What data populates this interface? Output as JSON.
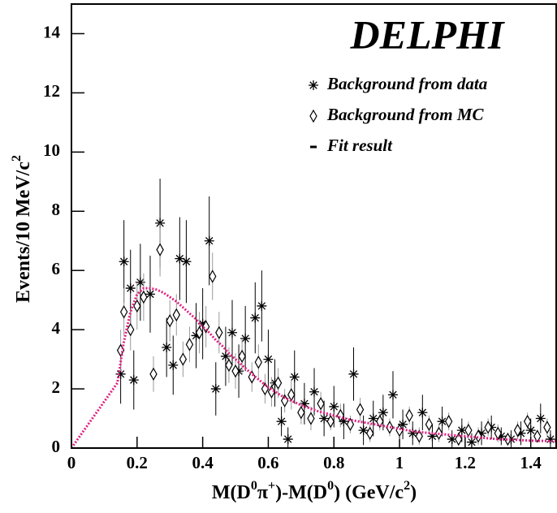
{
  "chart_data": {
    "type": "scatter",
    "title": "DELPHI",
    "x_label_parts": [
      "M(D",
      "0",
      "π",
      "+",
      ")-M(D",
      "0",
      ") (GeV/c",
      "2",
      ")"
    ],
    "y_label_parts": [
      "Events/10 MeV/c",
      "2"
    ],
    "xlim": [
      0,
      1.48
    ],
    "ylim": [
      0,
      15
    ],
    "xticks": [
      0,
      0.2,
      0.4,
      0.6,
      0.8,
      1,
      1.2,
      1.4
    ],
    "yticks": [
      0,
      2,
      4,
      6,
      8,
      10,
      12,
      14
    ],
    "series": [
      {
        "name": "Background from data",
        "marker": "asterisk",
        "color": "#000000",
        "errcolor": "#000000",
        "x": [
          0.15,
          0.16,
          0.18,
          0.19,
          0.21,
          0.24,
          0.27,
          0.29,
          0.31,
          0.33,
          0.35,
          0.38,
          0.4,
          0.42,
          0.44,
          0.47,
          0.49,
          0.51,
          0.53,
          0.56,
          0.58,
          0.6,
          0.62,
          0.64,
          0.66,
          0.68,
          0.71,
          0.74,
          0.77,
          0.8,
          0.83,
          0.86,
          0.89,
          0.92,
          0.95,
          0.98,
          1.01,
          1.04,
          1.07,
          1.1,
          1.13,
          1.16,
          1.19,
          1.22,
          1.25,
          1.28,
          1.31,
          1.34,
          1.37,
          1.4,
          1.43,
          1.46
        ],
        "values": [
          2.5,
          6.3,
          5.4,
          2.3,
          5.6,
          5.2,
          7.6,
          3.4,
          2.8,
          6.4,
          6.3,
          3.8,
          4.2,
          7.0,
          2.0,
          3.1,
          3.9,
          2.6,
          3.7,
          4.4,
          4.8,
          3.0,
          2.2,
          0.9,
          0.3,
          2.4,
          1.5,
          1.9,
          1.0,
          1.4,
          0.9,
          2.5,
          0.6,
          1.0,
          1.2,
          1.8,
          0.8,
          0.5,
          1.2,
          0.4,
          0.9,
          0.3,
          0.6,
          0.2,
          0.5,
          0.7,
          0.4,
          0.3,
          0.5,
          0.6,
          1.0,
          0.3
        ],
        "errors": [
          1.0,
          1.4,
          1.3,
          1.0,
          1.3,
          1.3,
          1.5,
          1.0,
          1.0,
          1.4,
          1.4,
          1.1,
          1.2,
          1.5,
          0.9,
          1.0,
          1.1,
          0.9,
          1.1,
          1.2,
          1.2,
          1.0,
          0.8,
          0.5,
          0.4,
          0.9,
          0.7,
          0.8,
          0.6,
          0.7,
          0.6,
          0.9,
          0.5,
          0.6,
          0.6,
          0.8,
          0.5,
          0.4,
          0.6,
          0.4,
          0.5,
          0.3,
          0.4,
          0.3,
          0.4,
          0.4,
          0.3,
          0.3,
          0.4,
          0.4,
          0.5,
          0.3
        ]
      },
      {
        "name": "Background from MC",
        "marker": "diamond",
        "color": "#000000",
        "errcolor": "#999999",
        "x": [
          0.15,
          0.16,
          0.18,
          0.2,
          0.22,
          0.25,
          0.27,
          0.3,
          0.32,
          0.34,
          0.36,
          0.39,
          0.41,
          0.43,
          0.45,
          0.48,
          0.5,
          0.52,
          0.55,
          0.57,
          0.59,
          0.61,
          0.63,
          0.65,
          0.67,
          0.7,
          0.73,
          0.76,
          0.79,
          0.82,
          0.85,
          0.88,
          0.91,
          0.94,
          0.97,
          1.0,
          1.03,
          1.06,
          1.09,
          1.12,
          1.15,
          1.18,
          1.21,
          1.24,
          1.27,
          1.3,
          1.33,
          1.36,
          1.39,
          1.42,
          1.45
        ],
        "values": [
          3.3,
          4.6,
          4.0,
          4.8,
          5.1,
          2.5,
          6.7,
          4.3,
          4.5,
          3.0,
          3.5,
          3.9,
          4.1,
          5.8,
          3.9,
          2.8,
          2.6,
          3.1,
          2.4,
          2.9,
          2.0,
          1.9,
          2.2,
          1.6,
          1.8,
          1.2,
          1.0,
          1.5,
          0.9,
          1.1,
          0.8,
          1.3,
          0.5,
          0.9,
          0.7,
          0.6,
          1.1,
          0.4,
          0.8,
          0.5,
          0.9,
          0.3,
          0.6,
          0.4,
          0.7,
          0.5,
          0.3,
          0.6,
          0.9,
          0.4,
          0.7
        ],
        "errors": [
          0.7,
          0.8,
          0.7,
          0.8,
          0.8,
          0.6,
          0.9,
          0.7,
          0.7,
          0.6,
          0.6,
          0.7,
          0.7,
          0.8,
          0.7,
          0.6,
          0.6,
          0.6,
          0.5,
          0.6,
          0.5,
          0.5,
          0.5,
          0.4,
          0.5,
          0.4,
          0.4,
          0.4,
          0.3,
          0.4,
          0.3,
          0.4,
          0.3,
          0.3,
          0.3,
          0.3,
          0.3,
          0.3,
          0.3,
          0.3,
          0.3,
          0.2,
          0.3,
          0.3,
          0.3,
          0.3,
          0.2,
          0.3,
          0.3,
          0.2,
          0.3
        ]
      },
      {
        "name": "Fit result",
        "marker": "line",
        "color": "#e0207f",
        "x": [
          0,
          0.14,
          0.16,
          0.18,
          0.2,
          0.22,
          0.24,
          0.26,
          0.28,
          0.3,
          0.32,
          0.34,
          0.36,
          0.38,
          0.4,
          0.42,
          0.44,
          0.46,
          0.48,
          0.5,
          0.55,
          0.6,
          0.65,
          0.7,
          0.75,
          0.8,
          0.85,
          0.9,
          0.95,
          1.0,
          1.05,
          1.1,
          1.15,
          1.2,
          1.25,
          1.3,
          1.35,
          1.4,
          1.45,
          1.48
        ],
        "values": [
          0,
          2.2,
          3.6,
          4.6,
          5.2,
          5.4,
          5.4,
          5.35,
          5.25,
          5.1,
          4.95,
          4.75,
          4.55,
          4.35,
          4.1,
          3.9,
          3.65,
          3.45,
          3.2,
          3.0,
          2.5,
          2.05,
          1.7,
          1.45,
          1.25,
          1.1,
          0.95,
          0.85,
          0.75,
          0.65,
          0.55,
          0.5,
          0.45,
          0.4,
          0.35,
          0.3,
          0.28,
          0.25,
          0.24,
          0.23
        ]
      }
    ]
  }
}
